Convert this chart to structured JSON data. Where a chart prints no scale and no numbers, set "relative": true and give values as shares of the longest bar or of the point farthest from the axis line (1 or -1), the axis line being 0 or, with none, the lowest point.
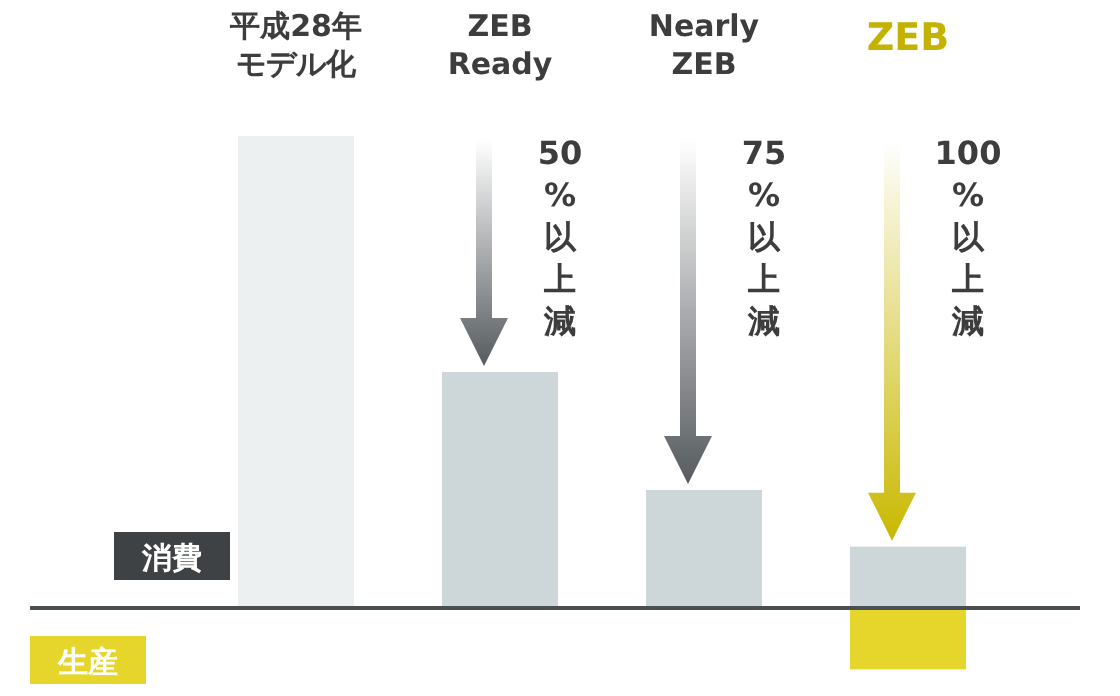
{
  "chart_data": {
    "type": "bar",
    "relative": true,
    "categories": [
      "平成28年モデル化",
      "ZEB Ready",
      "Nearly ZEB",
      "ZEB"
    ],
    "series": [
      {
        "name": "消費",
        "values": [
          1,
          0.5,
          0.25,
          0.13
        ],
        "colors": [
          "#edf0f1",
          "#cdd6d8",
          "#cdd6d8",
          "#cdd6d8"
        ]
      },
      {
        "name": "生産",
        "values": [
          null,
          null,
          null,
          -0.13
        ],
        "color": "#e6d52a"
      }
    ],
    "annotations": [
      "50%以上減",
      "75%以上減",
      "100%以上減"
    ]
  }
}
